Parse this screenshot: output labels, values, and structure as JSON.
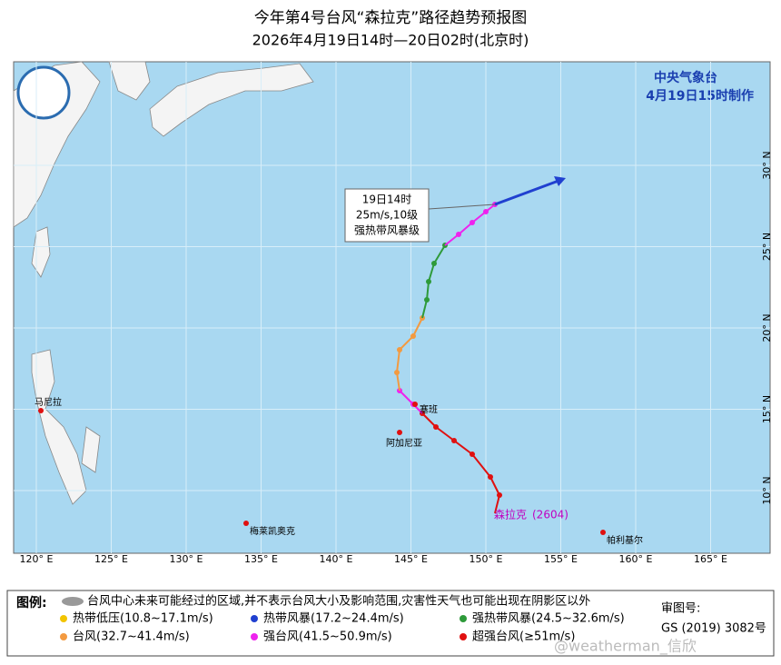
{
  "header": {
    "title": "今年第4号台风“森拉克”路径趋势预报图",
    "subtitle": "2026年4月19日14时—20日02时(北京时)"
  },
  "agency": {
    "name": "中央气象台",
    "issued": "4月19日15时制作"
  },
  "map": {
    "lon_labels": [
      "120° E",
      "125° E",
      "130° E",
      "135° E",
      "140° E",
      "145° E",
      "150° E",
      "155° E",
      "160° E",
      "165° E"
    ],
    "lat_labels": [
      "10° N",
      "15° N",
      "20° N",
      "25° N",
      "30° N"
    ],
    "places": [
      {
        "label": "马尼拉"
      },
      {
        "label": "塞班"
      },
      {
        "label": "阿加尼亚"
      },
      {
        "label": "梅莱凯奥克"
      },
      {
        "label": "帕利基尔"
      }
    ],
    "typhoon": {
      "name": "森拉克",
      "code": "(2604)"
    },
    "callout": {
      "time": "19日14时",
      "intensity": "25m/s,10级",
      "grade": "强热带风暴级"
    }
  },
  "legend": {
    "title": "图例:",
    "cone_note": "台风中心未来可能经过的区域,并不表示台风大小及影响范围,灾害性天气也可能出现在阴影区以外",
    "items": [
      {
        "label": "热带低压(10.8~17.1m/s)",
        "color": "#f2c400"
      },
      {
        "label": "热带风暴(17.2~24.4m/s)",
        "color": "#2040d0"
      },
      {
        "label": "强热带风暴(24.5~32.6m/s)",
        "color": "#2e9a3a"
      },
      {
        "label": "台风(32.7~41.4m/s)",
        "color": "#f39a40"
      },
      {
        "label": "强台风(41.5~50.9m/s)",
        "color": "#ee22ee"
      },
      {
        "label": "超强台风(≥51m/s)",
        "color": "#e01010"
      }
    ]
  },
  "approval": {
    "label": "审图号:",
    "number": "GS (2019) 3082号"
  },
  "watermark": "@weatherman_信欣"
}
